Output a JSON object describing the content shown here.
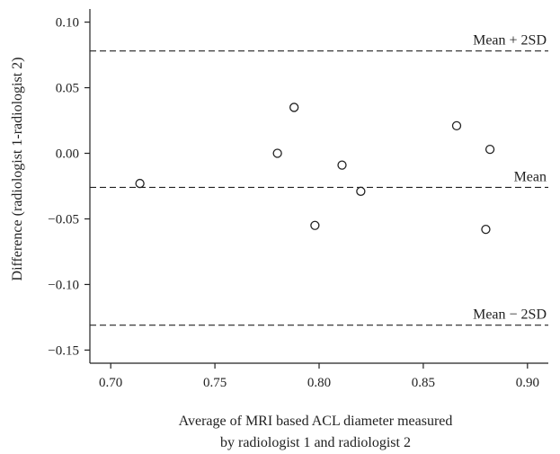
{
  "chart_data": {
    "type": "scatter",
    "title": "",
    "xlabel": [
      "Average of MRI based ACL diameter measured",
      "by radiologist 1 and radiologist 2"
    ],
    "ylabel": "Difference (radiologist 1-radiologist 2)",
    "xlim": [
      0.69,
      0.91
    ],
    "ylim": [
      -0.16,
      0.11
    ],
    "x_ticks": [
      "0.70",
      "0.75",
      "0.80",
      "0.85",
      "0.90"
    ],
    "x_tick_values": [
      0.7,
      0.75,
      0.8,
      0.85,
      0.9
    ],
    "y_ticks": [
      "0.10",
      "0.05",
      "0.00",
      "−0.05",
      "−0.10",
      "−0.15"
    ],
    "y_tick_values": [
      0.1,
      0.05,
      0.0,
      -0.05,
      -0.1,
      -0.15
    ],
    "grid": false,
    "points": [
      {
        "x": 0.714,
        "y": -0.023
      },
      {
        "x": 0.78,
        "y": 0.0
      },
      {
        "x": 0.788,
        "y": 0.035
      },
      {
        "x": 0.798,
        "y": -0.055
      },
      {
        "x": 0.811,
        "y": -0.009
      },
      {
        "x": 0.82,
        "y": -0.029
      },
      {
        "x": 0.866,
        "y": 0.021
      },
      {
        "x": 0.88,
        "y": -0.058
      },
      {
        "x": 0.882,
        "y": 0.003
      }
    ],
    "reference_lines": [
      {
        "label": "Mean + 2SD",
        "y": 0.078
      },
      {
        "label": "Mean",
        "y": -0.026
      },
      {
        "label": "Mean − 2SD",
        "y": -0.131
      }
    ],
    "colors": {
      "axis": "#222222",
      "marker_stroke": "#222222",
      "marker_fill": "#ffffff"
    }
  }
}
